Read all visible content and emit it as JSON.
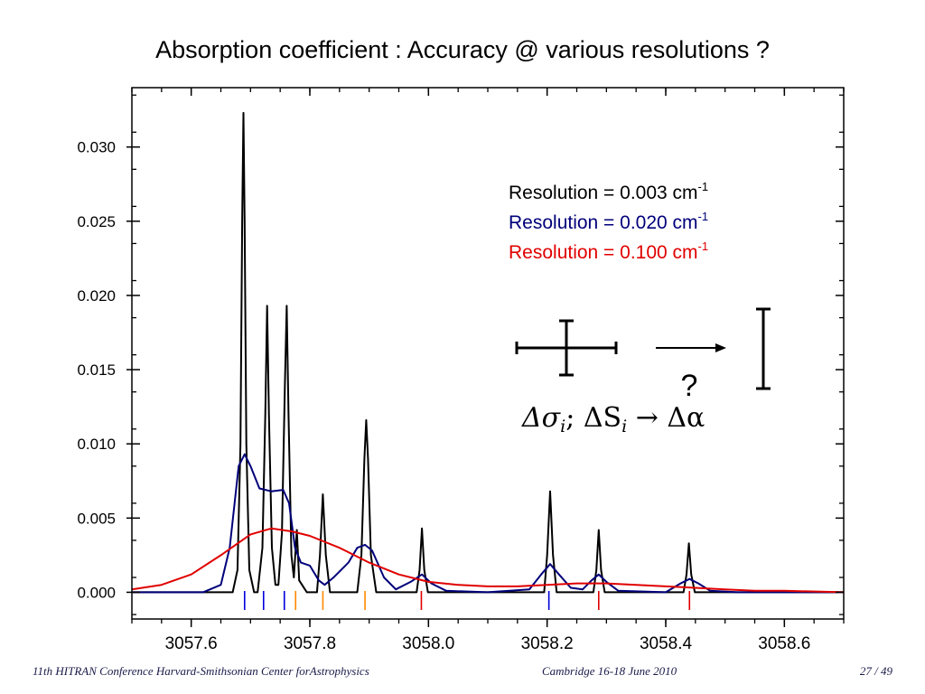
{
  "slide": {
    "title": "Absorption coefficient : Accuracy @ various resolutions ?",
    "footer_left": "11th HITRAN Conference  Harvard-Smithsonian Center forAstrophysics",
    "footer_center": "Cambridge 16-18 June 2010",
    "footer_page": "27 / 49"
  },
  "chart_data": {
    "type": "line",
    "title": "",
    "xlabel": "",
    "ylabel": "",
    "xlim": [
      3057.5,
      3058.7
    ],
    "ylim": [
      -0.0018,
      0.034
    ],
    "xticks": [
      3057.6,
      3057.8,
      3058.0,
      3058.2,
      3058.4,
      3058.6
    ],
    "xtick_labels": [
      "3057.6",
      "3057.8",
      "3058.0",
      "3058.2",
      "3058.4",
      "3058.6"
    ],
    "yticks": [
      0.0,
      0.005,
      0.01,
      0.015,
      0.02,
      0.025,
      0.03
    ],
    "ytick_labels": [
      "0.000",
      "0.005",
      "0.010",
      "0.015",
      "0.020",
      "0.025",
      "0.030"
    ],
    "grid": false,
    "legend": {
      "placement": "top-right",
      "unit_text": "cm",
      "unit_sup": "-1",
      "items": [
        {
          "prefix": "Resolution = ",
          "value": "0.003",
          "color": "#000000"
        },
        {
          "prefix": "Resolution = ",
          "value": "0.020",
          "color": "#00007a"
        },
        {
          "prefix": "Resolution = ",
          "value": "0.100",
          "color": "#e00000"
        }
      ]
    },
    "series": [
      {
        "resolution": 0.003,
        "color": "#000000",
        "points": [
          [
            3057.5,
            0.0
          ],
          [
            3057.67,
            0.0
          ],
          [
            3057.678,
            0.0015
          ],
          [
            3057.683,
            0.01
          ],
          [
            3057.686,
            0.025
          ],
          [
            3057.688,
            0.0323
          ],
          [
            3057.69,
            0.025
          ],
          [
            3057.693,
            0.01
          ],
          [
            3057.698,
            0.0015
          ],
          [
            3057.706,
            0.0
          ],
          [
            3057.712,
            0.0
          ],
          [
            3057.72,
            0.003
          ],
          [
            3057.725,
            0.012
          ],
          [
            3057.728,
            0.0193
          ],
          [
            3057.731,
            0.012
          ],
          [
            3057.736,
            0.003
          ],
          [
            3057.742,
            0.0005
          ],
          [
            3057.747,
            0.0005
          ],
          [
            3057.753,
            0.004
          ],
          [
            3057.758,
            0.014
          ],
          [
            3057.761,
            0.0193
          ],
          [
            3057.764,
            0.012
          ],
          [
            3057.769,
            0.0025
          ],
          [
            3057.773,
            0.001
          ],
          [
            3057.778,
            0.0042
          ],
          [
            3057.782,
            0.0008
          ],
          [
            3057.795,
            0.0
          ],
          [
            3057.812,
            0.0
          ],
          [
            3057.817,
            0.0025
          ],
          [
            3057.822,
            0.0066
          ],
          [
            3057.827,
            0.0025
          ],
          [
            3057.834,
            0.0
          ],
          [
            3057.88,
            0.0
          ],
          [
            3057.887,
            0.0025
          ],
          [
            3057.892,
            0.009
          ],
          [
            3057.895,
            0.0116
          ],
          [
            3057.898,
            0.009
          ],
          [
            3057.903,
            0.0025
          ],
          [
            3057.912,
            0.0
          ],
          [
            3057.98,
            0.0
          ],
          [
            3057.985,
            0.0015
          ],
          [
            3057.989,
            0.0043
          ],
          [
            3057.993,
            0.0015
          ],
          [
            3057.999,
            0.0
          ],
          [
            3058.195,
            0.0
          ],
          [
            3058.2,
            0.0025
          ],
          [
            3058.205,
            0.0068
          ],
          [
            3058.21,
            0.0025
          ],
          [
            3058.216,
            0.0
          ],
          [
            3058.278,
            0.0
          ],
          [
            3058.283,
            0.0015
          ],
          [
            3058.287,
            0.0042
          ],
          [
            3058.291,
            0.0015
          ],
          [
            3058.297,
            0.0
          ],
          [
            3058.43,
            0.0
          ],
          [
            3058.435,
            0.0012
          ],
          [
            3058.439,
            0.0033
          ],
          [
            3058.443,
            0.0012
          ],
          [
            3058.449,
            0.0
          ],
          [
            3058.7,
            0.0
          ]
        ]
      },
      {
        "resolution": 0.02,
        "color": "#00007a",
        "points": [
          [
            3057.5,
            0.0
          ],
          [
            3057.62,
            0.0
          ],
          [
            3057.65,
            0.0005
          ],
          [
            3057.665,
            0.003
          ],
          [
            3057.68,
            0.0085
          ],
          [
            3057.69,
            0.0093
          ],
          [
            3057.7,
            0.0085
          ],
          [
            3057.715,
            0.007
          ],
          [
            3057.735,
            0.0068
          ],
          [
            3057.755,
            0.0069
          ],
          [
            3057.765,
            0.006
          ],
          [
            3057.775,
            0.003
          ],
          [
            3057.785,
            0.002
          ],
          [
            3057.8,
            0.0018
          ],
          [
            3057.815,
            0.0008
          ],
          [
            3057.825,
            0.0005
          ],
          [
            3057.84,
            0.001
          ],
          [
            3057.865,
            0.002
          ],
          [
            3057.88,
            0.003
          ],
          [
            3057.893,
            0.0032
          ],
          [
            3057.905,
            0.0028
          ],
          [
            3057.925,
            0.001
          ],
          [
            3057.945,
            0.0002
          ],
          [
            3057.97,
            0.0007
          ],
          [
            3057.989,
            0.0012
          ],
          [
            3058.005,
            0.0006
          ],
          [
            3058.03,
            0.0001
          ],
          [
            3058.1,
            0.0
          ],
          [
            3058.17,
            0.0002
          ],
          [
            3058.19,
            0.0012
          ],
          [
            3058.205,
            0.0019
          ],
          [
            3058.22,
            0.0012
          ],
          [
            3058.24,
            0.0003
          ],
          [
            3058.26,
            0.0002
          ],
          [
            3058.275,
            0.0008
          ],
          [
            3058.287,
            0.0012
          ],
          [
            3058.3,
            0.0007
          ],
          [
            3058.32,
            0.0001
          ],
          [
            3058.4,
            0.0
          ],
          [
            3058.425,
            0.0006
          ],
          [
            3058.44,
            0.0009
          ],
          [
            3058.455,
            0.0006
          ],
          [
            3058.475,
            0.0001
          ],
          [
            3058.52,
            0.0
          ],
          [
            3058.7,
            0.0
          ]
        ]
      },
      {
        "resolution": 0.1,
        "color": "#e00000",
        "points": [
          [
            3057.5,
            0.0002
          ],
          [
            3057.55,
            0.0005
          ],
          [
            3057.6,
            0.0012
          ],
          [
            3057.65,
            0.0025
          ],
          [
            3057.7,
            0.0039
          ],
          [
            3057.735,
            0.0043
          ],
          [
            3057.77,
            0.0041
          ],
          [
            3057.8,
            0.0038
          ],
          [
            3057.85,
            0.003
          ],
          [
            3057.9,
            0.002
          ],
          [
            3057.95,
            0.0012
          ],
          [
            3058.0,
            0.0007
          ],
          [
            3058.05,
            0.0005
          ],
          [
            3058.1,
            0.0004
          ],
          [
            3058.15,
            0.0004
          ],
          [
            3058.2,
            0.0005
          ],
          [
            3058.25,
            0.0006
          ],
          [
            3058.3,
            0.0006
          ],
          [
            3058.35,
            0.0005
          ],
          [
            3058.4,
            0.0004
          ],
          [
            3058.45,
            0.0003
          ],
          [
            3058.5,
            0.0002
          ],
          [
            3058.55,
            0.0001
          ],
          [
            3058.6,
            0.0001
          ],
          [
            3058.7,
            0.0
          ]
        ]
      }
    ],
    "line_markers": [
      {
        "x": 3057.69,
        "color": "#0000dd"
      },
      {
        "x": 3057.722,
        "color": "#0000dd"
      },
      {
        "x": 3057.757,
        "color": "#0000dd"
      },
      {
        "x": 3057.776,
        "color": "#ff8800"
      },
      {
        "x": 3057.822,
        "color": "#ff8800"
      },
      {
        "x": 3057.893,
        "color": "#ff8800"
      },
      {
        "x": 3057.988,
        "color": "#e00000"
      },
      {
        "x": 3058.203,
        "color": "#0000dd"
      },
      {
        "x": 3058.287,
        "color": "#e00000"
      },
      {
        "x": 3058.44,
        "color": "#e00000"
      }
    ],
    "annotation": {
      "formula_parts": [
        "Δσ",
        "i",
        "; ΔS",
        "i",
        " → Δα"
      ],
      "question": "?"
    }
  }
}
